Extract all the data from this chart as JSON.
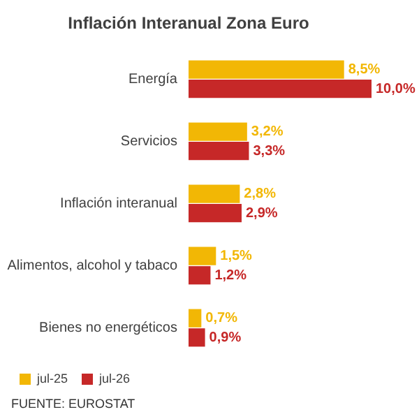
{
  "chart_data": {
    "type": "bar",
    "orientation": "horizontal",
    "title": "Inflación Interanual Zona Euro",
    "categories": [
      "Energía",
      "Servicios",
      "Inflación interanual",
      "Alimentos, alcohol y tabaco",
      "Bienes no energéticos"
    ],
    "series": [
      {
        "name": "jul-25",
        "color": "#f2b705",
        "values": [
          8.5,
          3.2,
          2.8,
          1.5,
          0.7
        ],
        "value_labels": [
          "8,5%",
          "3,2%",
          "2,8%",
          "1,5%",
          "0,7%"
        ]
      },
      {
        "name": "jul-26",
        "color": "#c62828",
        "values": [
          10.0,
          3.3,
          2.9,
          1.2,
          0.9
        ],
        "value_labels": [
          "10,0%",
          "3,3%",
          "2,9%",
          "1,2%",
          "0,9%"
        ]
      }
    ],
    "grid": false,
    "legend": "bottom left",
    "tick_labels": "y",
    "annotations": [
      "FUENTE: EUROSTAT"
    ]
  }
}
